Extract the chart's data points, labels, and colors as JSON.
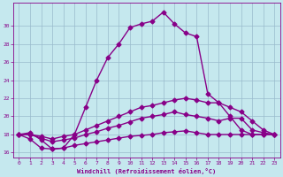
{
  "xlabel": "Windchill (Refroidissement éolien,°C)",
  "xlim": [
    -0.5,
    23.5
  ],
  "ylim": [
    15.5,
    32.5
  ],
  "yticks": [
    16,
    18,
    20,
    22,
    24,
    26,
    28,
    30
  ],
  "xticks": [
    0,
    1,
    2,
    3,
    4,
    5,
    6,
    7,
    8,
    9,
    10,
    11,
    12,
    13,
    14,
    15,
    16,
    17,
    18,
    19,
    20,
    21,
    22,
    23
  ],
  "background_color": "#c5e8ee",
  "line_color": "#880088",
  "grid_color": "#99bbcc",
  "lines": [
    {
      "x": [
        0,
        1,
        2,
        3,
        4,
        5,
        6,
        7,
        8,
        9,
        10,
        11,
        12,
        13,
        14,
        15,
        16,
        17,
        18,
        19,
        20,
        21,
        22,
        23
      ],
      "y": [
        18.0,
        18.2,
        17.4,
        16.4,
        16.5,
        18.0,
        21.0,
        24.0,
        26.5,
        28.0,
        29.8,
        30.2,
        30.5,
        31.5,
        30.2,
        29.2,
        28.8,
        22.5,
        21.5,
        20.0,
        18.5,
        18.0,
        18.0,
        18.0
      ],
      "marker": "D",
      "markersize": 2.5,
      "linewidth": 1.0,
      "linestyle": "-"
    },
    {
      "x": [
        0,
        1,
        2,
        3,
        4,
        5,
        6,
        7,
        8,
        9,
        10,
        11,
        12,
        13,
        14,
        15,
        16,
        17,
        18,
        19,
        20,
        21,
        22,
        23
      ],
      "y": [
        18.0,
        18.0,
        17.8,
        17.5,
        17.8,
        18.0,
        18.5,
        19.0,
        19.5,
        20.0,
        20.5,
        21.0,
        21.2,
        21.5,
        21.8,
        22.0,
        21.8,
        21.5,
        21.5,
        21.0,
        20.5,
        19.5,
        18.5,
        18.0
      ],
      "marker": "D",
      "markersize": 2.5,
      "linewidth": 1.0,
      "linestyle": "-"
    },
    {
      "x": [
        0,
        1,
        2,
        3,
        4,
        5,
        6,
        7,
        8,
        9,
        10,
        11,
        12,
        13,
        14,
        15,
        16,
        17,
        18,
        19,
        20,
        21,
        22,
        23
      ],
      "y": [
        18.0,
        18.0,
        17.6,
        17.2,
        17.4,
        17.6,
        18.0,
        18.3,
        18.7,
        19.0,
        19.4,
        19.8,
        20.0,
        20.2,
        20.5,
        20.2,
        20.0,
        19.8,
        19.5,
        19.8,
        19.8,
        18.5,
        18.2,
        18.0
      ],
      "marker": "D",
      "markersize": 2.5,
      "linewidth": 1.0,
      "linestyle": "-"
    },
    {
      "x": [
        0,
        1,
        2,
        3,
        4,
        5,
        6,
        7,
        8,
        9,
        10,
        11,
        12,
        13,
        14,
        15,
        16,
        17,
        18,
        19,
        20,
        21,
        22,
        23
      ],
      "y": [
        18.0,
        17.5,
        16.5,
        16.4,
        16.5,
        16.8,
        17.0,
        17.2,
        17.4,
        17.6,
        17.8,
        17.9,
        18.0,
        18.2,
        18.3,
        18.4,
        18.2,
        18.0,
        18.0,
        18.0,
        18.0,
        18.0,
        18.0,
        18.0
      ],
      "marker": "D",
      "markersize": 2.5,
      "linewidth": 1.0,
      "linestyle": "-"
    }
  ]
}
